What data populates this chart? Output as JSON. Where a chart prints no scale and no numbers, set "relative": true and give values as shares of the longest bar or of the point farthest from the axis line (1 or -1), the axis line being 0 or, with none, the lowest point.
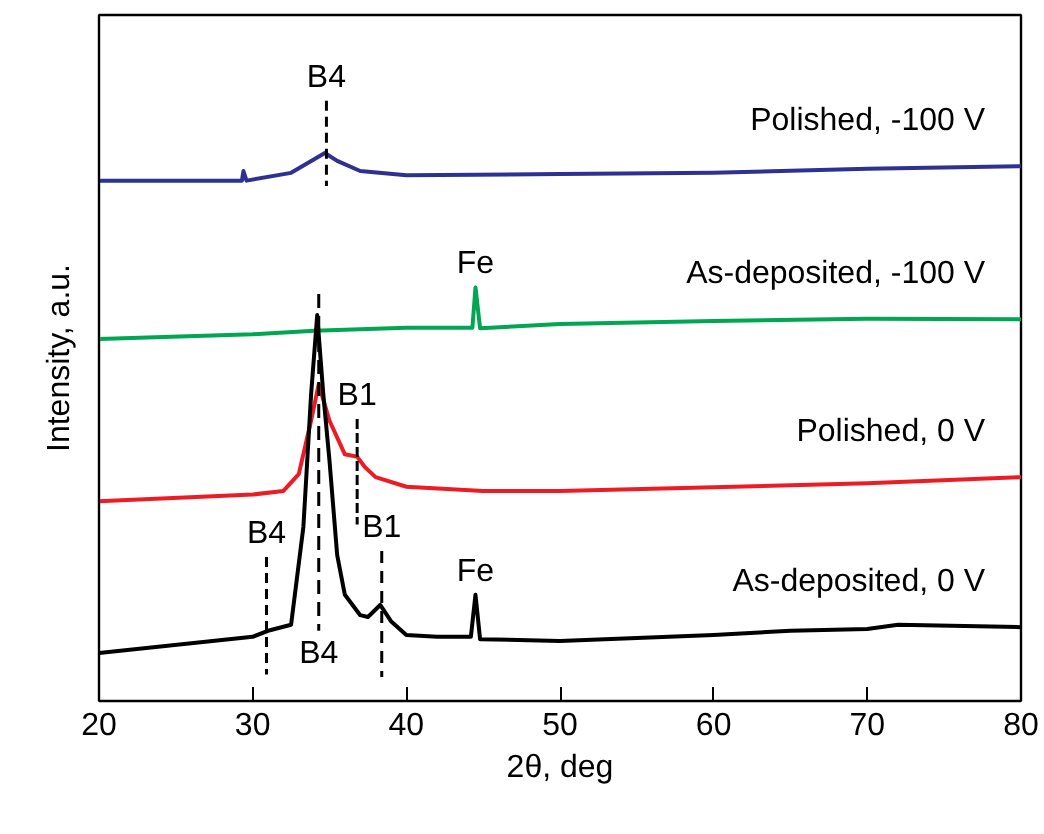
{
  "chart_data": {
    "type": "line",
    "relative": true,
    "xlabel": "2θ, deg",
    "ylabel": "Intensity, a.u.",
    "xlim": [
      20,
      80
    ],
    "xticks": [
      20,
      30,
      40,
      50,
      60,
      70,
      80
    ],
    "grid": false,
    "series": [
      {
        "name": "Polished, -100 V",
        "color": "#2e3192",
        "x": [
          20,
          29.3,
          29.4,
          29.6,
          32.5,
          34.7,
          35.5,
          37,
          40,
          50,
          60,
          70,
          80
        ],
        "values": [
          0.867,
          0.867,
          0.883,
          0.867,
          0.88,
          0.913,
          0.9,
          0.883,
          0.876,
          0.878,
          0.88,
          0.887,
          0.891
        ]
      },
      {
        "name": "As-deposited, -100 V",
        "color": "#00a651",
        "x": [
          20,
          30,
          34,
          40,
          44.3,
          44.5,
          44.8,
          50,
          60,
          70,
          80
        ],
        "values": [
          0.603,
          0.611,
          0.617,
          0.622,
          0.622,
          0.689,
          0.621,
          0.628,
          0.633,
          0.637,
          0.636
        ]
      },
      {
        "name": "Polished, 0 V",
        "color": "#ed1c24",
        "x": [
          20,
          30,
          32,
          33,
          33.8,
          34.3,
          35,
          36,
          36.8,
          37.3,
          38,
          40,
          45,
          50,
          60,
          70,
          80
        ],
        "values": [
          0.333,
          0.344,
          0.35,
          0.378,
          0.467,
          0.528,
          0.467,
          0.411,
          0.407,
          0.39,
          0.373,
          0.357,
          0.35,
          0.35,
          0.356,
          0.363,
          0.373
        ]
      },
      {
        "name": "As-deposited, 0 V",
        "color": "#000000",
        "x": [
          20,
          30,
          31,
          32.5,
          33.3,
          33.8,
          34.2,
          34.6,
          35,
          35.5,
          36,
          37,
          37.5,
          38.3,
          39,
          40,
          42,
          44.2,
          44.5,
          44.8,
          50,
          60,
          65,
          70,
          72,
          80
        ],
        "values": [
          0.08,
          0.107,
          0.117,
          0.127,
          0.29,
          0.51,
          0.643,
          0.51,
          0.4,
          0.243,
          0.177,
          0.143,
          0.14,
          0.16,
          0.133,
          0.11,
          0.107,
          0.107,
          0.177,
          0.103,
          0.1,
          0.11,
          0.117,
          0.12,
          0.127,
          0.123
        ]
      },
      {
        "type": "line",
        "line_style": "dashed",
        "color": "#000000",
        "x": [
          34.8,
          34.8
        ],
        "values": [
          1.0,
          0.858
        ]
      },
      {
        "type": "line",
        "line_style": "dashed",
        "color": "#000000",
        "x": [
          34.3,
          34.3
        ],
        "values": [
          0.678,
          0.117
        ]
      },
      {
        "type": "line",
        "line_style": "dashed",
        "color": "#000000",
        "x": [
          36.8,
          36.8
        ],
        "values": [
          0.47,
          0.294
        ]
      },
      {
        "type": "line",
        "line_style": "dashed",
        "color": "#000000",
        "x": [
          30.9,
          30.9
        ],
        "values": [
          0.24,
          0.044
        ]
      },
      {
        "type": "line",
        "line_style": "dashed",
        "color": "#000000",
        "x": [
          38.4,
          38.4
        ],
        "values": [
          0.25,
          0.04
        ]
      }
    ],
    "annotations": [
      {
        "text": "B4",
        "x": 34.8,
        "y": 1.0
      },
      {
        "text": "B4",
        "x": 34.3,
        "y": 0.117
      },
      {
        "text": "B1",
        "x": 36.8,
        "y": 0.47
      },
      {
        "text": "B4",
        "x": 30.9,
        "y": 0.24
      },
      {
        "text": "B1",
        "x": 38.4,
        "y": 0.25
      },
      {
        "text": "Fe",
        "x": 44.5,
        "y": 0.177
      },
      {
        "text": "Fe",
        "x": 44.5,
        "y": 0.689
      }
    ]
  }
}
